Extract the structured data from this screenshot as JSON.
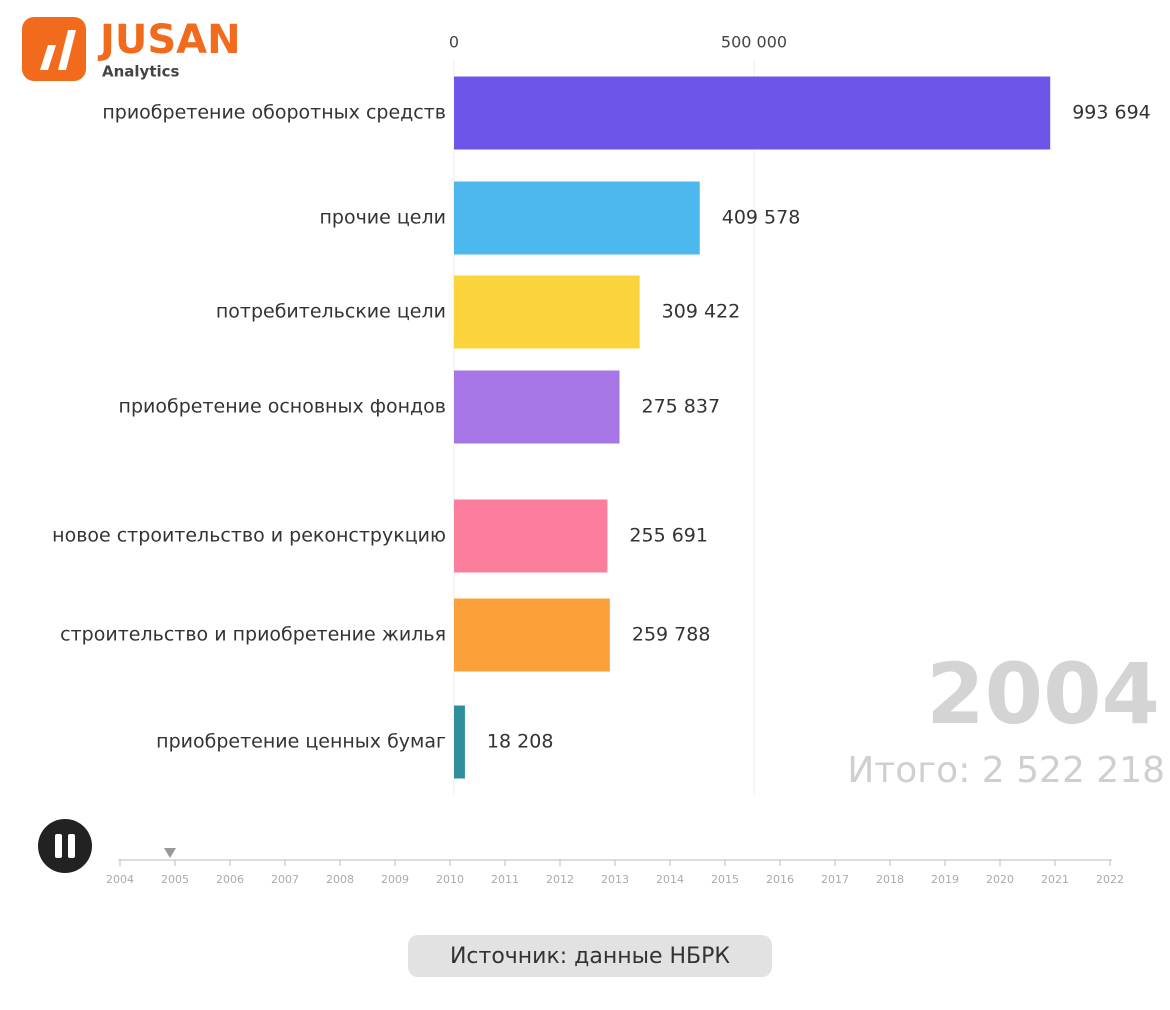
{
  "logo": {
    "name": "JUSAN",
    "subtitle": "Analytics"
  },
  "chart_data": {
    "type": "bar",
    "orientation": "horizontal",
    "categories": [
      "приобретение оборотных средств",
      "прочие цели",
      "потребительские цели",
      "приобретение основных фондов",
      "новое строительство и реконструкцию",
      "строительство и приобретение жилья",
      "приобретение ценных бумаг"
    ],
    "values": [
      993694,
      409578,
      309422,
      275837,
      255691,
      259788,
      18208
    ],
    "value_labels": [
      "993 694",
      "409 578",
      "309 422",
      "275 837",
      "255 691",
      "259 788",
      "18 208"
    ],
    "colors": [
      "#6c55e8",
      "#4db8ee",
      "#fbd33a",
      "#a675e6",
      "#fb7f9c",
      "#fba13a",
      "#2e8f9a"
    ],
    "xlim": [
      0,
      1150000
    ],
    "xticks": [
      0,
      {
        "value": 500000,
        "label": "500 000"
      }
    ],
    "grid": true,
    "year": "2004",
    "total": "Итого: 2 522 218"
  },
  "timeline": [
    "2004",
    "2005",
    "2006",
    "2007",
    "2008",
    "2009",
    "2010",
    "2011",
    "2012",
    "2013",
    "2014",
    "2015",
    "2016",
    "2017",
    "2018",
    "2019",
    "2020",
    "2021",
    "2022"
  ],
  "source": "Источник: данные НБРК"
}
